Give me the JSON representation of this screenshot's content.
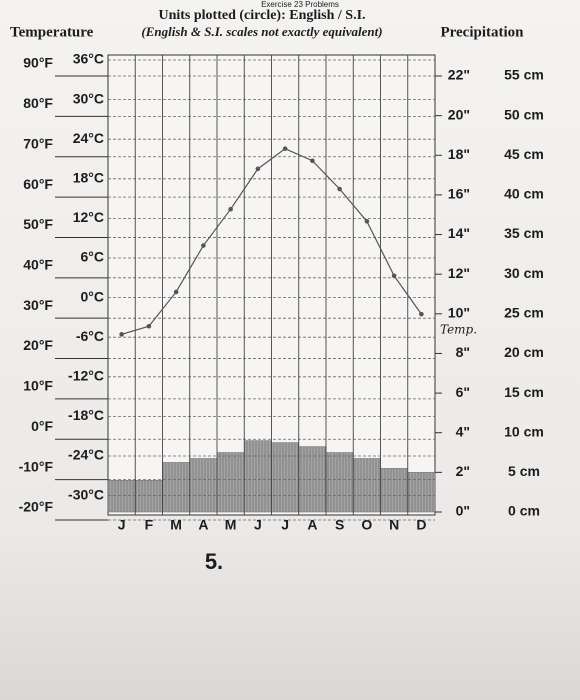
{
  "chart_data": {
    "type": "climograph",
    "header": "Exercise 23 Problems",
    "title": "Units plotted (circle): English / S.I.",
    "ylabel": "Temperature",
    "subtitle": "(English & S.I. scales not exactly equivalent)",
    "figure_number": "5.",
    "categories": [
      "J",
      "F",
      "M",
      "A",
      "M",
      "J",
      "J",
      "A",
      "S",
      "O",
      "N",
      "D"
    ],
    "ylim": [
      -20,
      90
    ],
    "yticks": [
      {
        "value": 90,
        "label": "90°F"
      },
      {
        "value": 80,
        "label": "80°F"
      },
      {
        "value": 70,
        "label": "70°F"
      },
      {
        "value": 60,
        "label": "60°F"
      },
      {
        "value": 50,
        "label": "50°F"
      },
      {
        "value": 40,
        "label": "40°F"
      },
      {
        "value": 30,
        "label": "30°F"
      },
      {
        "value": 20,
        "label": "20°F"
      },
      {
        "value": 10,
        "label": "10°F"
      },
      {
        "value": 0,
        "label": "0°F"
      },
      {
        "value": -10,
        "label": "-10°F"
      },
      {
        "value": -20,
        "label": "-20°F"
      }
    ],
    "celsius_ticks": [
      {
        "value": 36,
        "label": "36°C"
      },
      {
        "value": 30,
        "label": "30°C"
      },
      {
        "value": 24,
        "label": "24°C"
      },
      {
        "value": 18,
        "label": "18°C"
      },
      {
        "value": 12,
        "label": "12°C"
      },
      {
        "value": 6,
        "label": "6°C"
      },
      {
        "value": 0,
        "label": "0°C"
      },
      {
        "value": -6,
        "label": "-6°C"
      },
      {
        "value": -12,
        "label": "-12°C"
      },
      {
        "value": -18,
        "label": "-18°C"
      },
      {
        "value": -24,
        "label": "-24°C"
      },
      {
        "value": -30,
        "label": "-30°C"
      }
    ],
    "y2lim": [
      0,
      22
    ],
    "y2ticks": [
      {
        "value": 22,
        "label": "22\""
      },
      {
        "value": 20,
        "label": "20\""
      },
      {
        "value": 18,
        "label": "18\""
      },
      {
        "value": 16,
        "label": "16\""
      },
      {
        "value": 14,
        "label": "14\""
      },
      {
        "value": 12,
        "label": "12\""
      },
      {
        "value": 10,
        "label": "10\""
      },
      {
        "value": 8,
        "label": "8\""
      },
      {
        "value": 6,
        "label": "6\""
      },
      {
        "value": 4,
        "label": "4\""
      },
      {
        "value": 2,
        "label": "2\""
      },
      {
        "value": 0,
        "label": "0\""
      }
    ],
    "cm_labels": [
      {
        "value": 55,
        "label": "55 cm"
      },
      {
        "value": 50,
        "label": "50 cm"
      },
      {
        "value": 45,
        "label": "45 cm"
      },
      {
        "value": 40,
        "label": "40 cm"
      },
      {
        "value": 35,
        "label": "35 cm"
      },
      {
        "value": 30,
        "label": "30 cm"
      },
      {
        "value": 25,
        "label": "25 cm"
      },
      {
        "value": 20,
        "label": "20 cm"
      },
      {
        "value": 15,
        "label": "15 cm"
      },
      {
        "value": 10,
        "label": "10 cm"
      },
      {
        "value": 5,
        "label": "5 cm"
      },
      {
        "value": 0,
        "label": "0 cm"
      }
    ],
    "series": [
      {
        "name": "Temp.",
        "color": "#555555",
        "values": [
          26,
          28,
          36.5,
          48,
          57,
          67,
          72,
          69,
          62,
          54,
          40.5,
          31
        ]
      },
      {
        "name": "Precipitation",
        "color": "#9a9a9a",
        "axis": "y2",
        "values": [
          1.6,
          1.6,
          2.5,
          2.7,
          3.0,
          3.6,
          3.5,
          3.3,
          3.0,
          2.7,
          2.2,
          2.0
        ]
      }
    ]
  }
}
